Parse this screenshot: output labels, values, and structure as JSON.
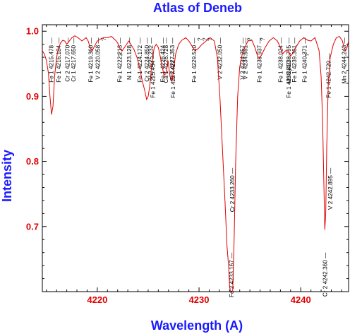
{
  "chart_data": {
    "type": "line",
    "title": "Atlas of Deneb",
    "xlabel": "Wavelength (A)",
    "ylabel": "Intensity",
    "xlim": [
      4214.6,
      4244.7
    ],
    "ylim": [
      0.6,
      1.01
    ],
    "x_ticks": [
      4220,
      4230,
      4240
    ],
    "y_ticks": [
      0.7,
      0.8,
      0.9,
      1.0
    ],
    "y_tick_labels": [
      "0.7",
      "0.8",
      "0.9",
      "1.0"
    ],
    "grid": false,
    "colors": {
      "title": "#1a1aff",
      "tick_labels": "#e00000",
      "spectrum": "#e00000",
      "frame": "#000000"
    },
    "series": [
      {
        "x": [
          4214.6,
          4214.8,
          4215.0,
          4215.2,
          4215.35,
          4215.5,
          4215.65,
          4215.8,
          4216.0,
          4216.2,
          4216.4,
          4216.6,
          4216.8,
          4217.0,
          4217.2,
          4217.5,
          4217.8,
          4218.1,
          4218.5,
          4218.9,
          4219.1,
          4219.3,
          4219.5,
          4219.7,
          4220.0,
          4220.05,
          4220.3,
          4220.6,
          4221.0,
          4221.4,
          4221.8,
          4222.0,
          4222.2,
          4222.45,
          4222.8,
          4223.1,
          4223.3,
          4223.6,
          4223.9,
          4224.15,
          4224.4,
          4224.65,
          4224.85,
          4225.0,
          4225.15,
          4225.3,
          4225.45,
          4225.6,
          4225.8,
          4226.0,
          4226.2,
          4226.4,
          4226.55,
          4226.75,
          4226.95,
          4227.15,
          4227.35,
          4227.5,
          4227.7,
          4228.0,
          4228.3,
          4228.7,
          4229.0,
          4229.4,
          4229.6,
          4229.9,
          4230.3,
          4230.7,
          4231.1,
          4231.5,
          4231.8,
          4232.05,
          4232.3,
          4232.55,
          4232.75,
          4232.9,
          4233.0,
          4233.08,
          4233.17,
          4233.26,
          4233.35,
          4233.45,
          4233.6,
          4233.8,
          4234.0,
          4234.25,
          4234.5,
          4234.8,
          4235.2,
          4235.5,
          4235.75,
          4235.95,
          4236.2,
          4236.5,
          4236.9,
          4237.3,
          4237.7,
          4238.0,
          4238.2,
          4238.5,
          4238.8,
          4239.0,
          4239.2,
          4239.5,
          4239.9,
          4240.3,
          4240.7,
          4241.0,
          4241.4,
          4241.8,
          4242.0,
          4242.15,
          4242.25,
          4242.36,
          4242.45,
          4242.55,
          4242.7,
          4242.9,
          4243.2,
          4243.5,
          4243.8,
          4244.1,
          4244.25,
          4244.4,
          4244.55,
          4244.7
        ],
        "values": [
          0.97,
          0.965,
          0.955,
          0.935,
          0.9,
          0.872,
          0.885,
          0.93,
          0.96,
          0.975,
          0.982,
          0.986,
          0.985,
          0.98,
          0.984,
          0.99,
          0.993,
          0.99,
          0.985,
          0.99,
          0.985,
          0.975,
          0.97,
          0.976,
          0.985,
          0.985,
          0.988,
          0.99,
          0.99,
          0.992,
          0.986,
          0.982,
          0.974,
          0.97,
          0.978,
          0.985,
          0.98,
          0.972,
          0.96,
          0.945,
          0.925,
          0.91,
          0.895,
          0.9,
          0.915,
          0.94,
          0.96,
          0.975,
          0.98,
          0.975,
          0.96,
          0.945,
          0.932,
          0.935,
          0.955,
          0.93,
          0.923,
          0.94,
          0.965,
          0.98,
          0.986,
          0.99,
          0.985,
          0.975,
          0.97,
          0.973,
          0.98,
          0.985,
          0.99,
          0.985,
          0.96,
          0.9,
          0.82,
          0.74,
          0.67,
          0.64,
          0.61,
          0.6,
          0.57,
          0.58,
          0.62,
          0.68,
          0.8,
          0.9,
          0.945,
          0.965,
          0.975,
          0.985,
          0.986,
          0.975,
          0.962,
          0.958,
          0.965,
          0.975,
          0.985,
          0.99,
          0.985,
          0.975,
          0.965,
          0.97,
          0.97,
          0.962,
          0.966,
          0.975,
          0.985,
          0.99,
          0.986,
          0.985,
          0.99,
          0.97,
          0.93,
          0.86,
          0.78,
          0.695,
          0.72,
          0.82,
          0.92,
          0.96,
          0.98,
          0.99,
          0.992,
          0.985,
          0.975,
          0.97,
          0.975,
          0.985
        ]
      }
    ],
    "annotations": [
      {
        "text": "Fe 1 4215.478",
        "x": 4215.48
      },
      {
        "text": "Fe 1 4216.184",
        "x": 4216.18
      },
      {
        "text": "Cr 2 4217.070",
        "x": 4217.07
      },
      {
        "text": "Cr 1 4217.650",
        "x": 4217.65
      },
      {
        "text": "Fe 1 4219.360",
        "x": 4219.36
      },
      {
        "text": "V 2 4220.058",
        "x": 4220.06
      },
      {
        "text": "?",
        "x": 4220.62
      },
      {
        "text": "Fe 1 4222.213",
        "x": 4222.21
      },
      {
        "text": "?",
        "x": 4222.27
      },
      {
        "text": "N 1 4223.128",
        "x": 4223.13
      },
      {
        "text": "Fe 1 4224.172",
        "x": 4224.17
      },
      {
        "text": "Cr 2 4224.850",
        "x": 4224.85
      },
      {
        "text": "V 2 4225.232",
        "x": 4225.23
      },
      {
        "text": "Fe 1 4225.454",
        "x": 4225.45
      },
      {
        "text": "Fe 1 4226.424",
        "x": 4226.42
      },
      {
        "text": "Ca 1 4226.728",
        "x": 4226.73
      },
      {
        "text": "Ti 2 4227.353",
        "x": 4227.35
      },
      {
        "text": "Fe 1 4227.427",
        "x": 4227.43
      },
      {
        "text": "Fe 1 4229.510",
        "x": 4229.51
      },
      {
        "text": "?",
        "x": 4230.05
      },
      {
        "text": "?",
        "x": 4230.55
      },
      {
        "text": "?",
        "x": 4231.03
      },
      {
        "text": "V 2 4232.050",
        "x": 4232.05
      },
      {
        "text": "Fe 2 4233.167",
        "x": 4233.17
      },
      {
        "text": "Cr 2 4233.260",
        "x": 4233.26
      },
      {
        "text": "V 2 4234.257",
        "x": 4234.26
      },
      {
        "text": "V 2 4234.551",
        "x": 4234.55
      },
      {
        "text": "?",
        "x": 4234.95
      },
      {
        "text": "Fe 1 4235.937",
        "x": 4235.94
      },
      {
        "text": "?",
        "x": 4236.25
      },
      {
        "text": "Fe 1 4238.024",
        "x": 4238.02
      },
      {
        "text": "Mn 2 4238.795",
        "x": 4238.8
      },
      {
        "text": "Fe 1 4238.810",
        "x": 4238.81
      },
      {
        "text": "?",
        "x": 4239.05
      },
      {
        "text": "Fe 1 4239.361",
        "x": 4239.36
      },
      {
        "text": "Fe 1 4240.371",
        "x": 4240.37
      },
      {
        "text": "?",
        "x": 4240.6
      },
      {
        "text": "Cr 2 4242.360",
        "x": 4242.36
      },
      {
        "text": "V 2 4242.895",
        "x": 4242.9
      },
      {
        "text": "Fe 1 4242.729",
        "x": 4242.73
      },
      {
        "text": "Mn 2 4244.243",
        "x": 4244.24
      }
    ]
  }
}
